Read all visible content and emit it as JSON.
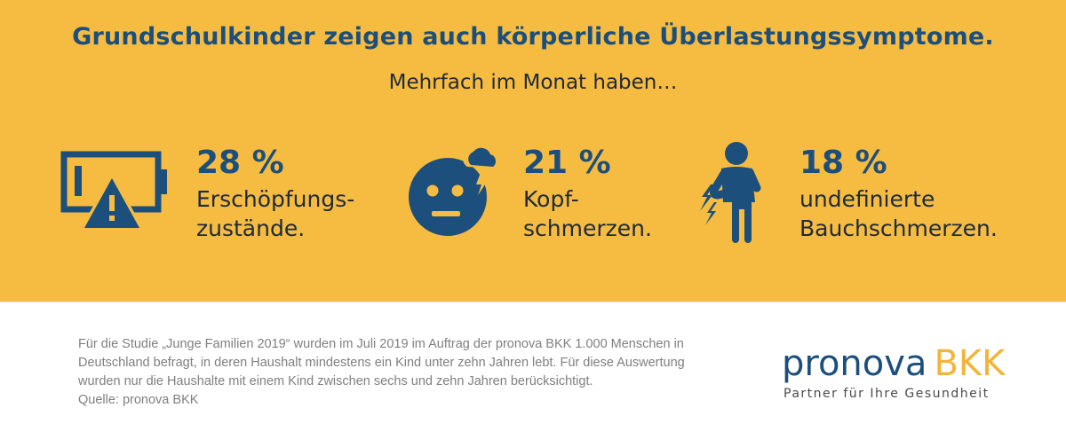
{
  "header": {
    "title": "Grundschulkinder zeigen auch körperliche Überlastungssymptome.",
    "subtitle": "Mehrfach im Monat haben…"
  },
  "stats": [
    {
      "percent": "28 %",
      "line1": "Erschöpfungs-",
      "line2": "zustände.",
      "icon": "battery-warning-icon"
    },
    {
      "percent": "21 %",
      "line1": "Kopf-",
      "line2": "schmerzen.",
      "icon": "headache-face-icon"
    },
    {
      "percent": "18 %",
      "line1": "undefinierte",
      "line2": "Bauchschmerzen.",
      "icon": "stomachache-person-icon"
    }
  ],
  "footer": {
    "lines": [
      "Für die Studie „Junge Familien 2019“ wurden im Juli 2019 im Auftrag der pronova BKK 1.000 Menschen in",
      "Deutschland befragt, in deren Haushalt mindestens ein Kind unter zehn Jahren lebt. Für diese Auswertung",
      "wurden nur die Haushalte mit einem Kind zwischen sechs und zehn Jahren berücksichtigt.",
      "Quelle: pronova BKK"
    ]
  },
  "logo": {
    "word1": "pronova",
    "word2": "BKK",
    "tagline": "Partner für Ihre Gesundheit"
  },
  "colors": {
    "banner": "#f6bc42",
    "primary": "#1c4f7c",
    "text": "#1f2a38",
    "muted": "#7f7f7f",
    "accent": "#f2b53a"
  }
}
